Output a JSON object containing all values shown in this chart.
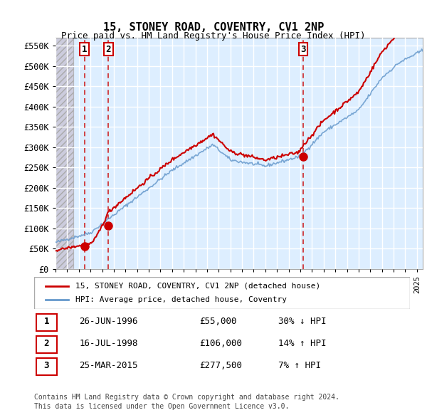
{
  "title": "15, STONEY ROAD, COVENTRY, CV1 2NP",
  "subtitle": "Price paid vs. HM Land Registry's House Price Index (HPI)",
  "ylabel_ticks": [
    "£0",
    "£50K",
    "£100K",
    "£150K",
    "£200K",
    "£250K",
    "£300K",
    "£350K",
    "£400K",
    "£450K",
    "£500K",
    "£550K"
  ],
  "ytick_values": [
    0,
    50000,
    100000,
    150000,
    200000,
    250000,
    300000,
    350000,
    400000,
    450000,
    500000,
    550000
  ],
  "xlim_start": 1994.0,
  "xlim_end": 2025.5,
  "ylim_min": 0,
  "ylim_max": 570000,
  "transactions": [
    {
      "date_num": 1996.48,
      "price": 55000,
      "label": "1"
    },
    {
      "date_num": 1998.54,
      "price": 106000,
      "label": "2"
    },
    {
      "date_num": 2015.23,
      "price": 277500,
      "label": "3"
    }
  ],
  "transaction_table": [
    {
      "num": "1",
      "date": "26-JUN-1996",
      "price": "£55,000",
      "hpi": "30% ↓ HPI"
    },
    {
      "num": "2",
      "date": "16-JUL-1998",
      "price": "£106,000",
      "hpi": "14% ↑ HPI"
    },
    {
      "num": "3",
      "date": "25-MAR-2015",
      "price": "£277,500",
      "hpi": "7% ↑ HPI"
    }
  ],
  "legend_line1": "15, STONEY ROAD, COVENTRY, CV1 2NP (detached house)",
  "legend_line2": "HPI: Average price, detached house, Coventry",
  "footer1": "Contains HM Land Registry data © Crown copyright and database right 2024.",
  "footer2": "This data is licensed under the Open Government Licence v3.0.",
  "red_line_color": "#cc0000",
  "blue_line_color": "#6699cc",
  "dot_color": "#cc0000",
  "vline_color": "#cc0000",
  "background_plot": "#ddeeff",
  "background_hatch": "#ccccdd",
  "grid_color": "#ffffff",
  "label_box_color": "#cc0000"
}
